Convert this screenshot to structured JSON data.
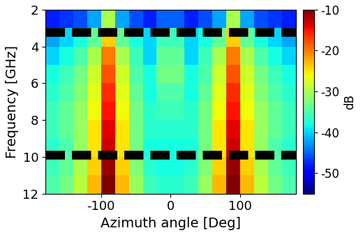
{
  "chart_data": {
    "type": "heatmap",
    "xlabel": "Azimuth angle [Deg]",
    "ylabel": "Frequency [GHz]",
    "x_edges": [
      -180,
      -160,
      -140,
      -120,
      -100,
      -80,
      -60,
      -40,
      -20,
      0,
      20,
      40,
      60,
      80,
      100,
      120,
      140,
      160,
      180
    ],
    "y_edges": [
      2,
      3,
      4,
      5,
      6,
      7,
      8,
      9,
      10,
      11,
      12
    ],
    "cells": [
      [
        -48,
        -47,
        -46,
        -42,
        -30,
        -42,
        -46,
        -48,
        -45,
        -45,
        -48,
        -46,
        -42,
        -30,
        -42,
        -46,
        -47,
        -48
      ],
      [
        -42,
        -40,
        -38,
        -34,
        -24,
        -34,
        -38,
        -40,
        -36,
        -36,
        -40,
        -38,
        -34,
        -24,
        -34,
        -38,
        -40,
        -42
      ],
      [
        -40,
        -38,
        -35,
        -30,
        -20,
        -30,
        -36,
        -40,
        -34,
        -34,
        -40,
        -36,
        -30,
        -20,
        -30,
        -35,
        -38,
        -40
      ],
      [
        -38,
        -36,
        -33,
        -28,
        -18,
        -28,
        -35,
        -38,
        -33,
        -33,
        -38,
        -35,
        -28,
        -18,
        -28,
        -33,
        -36,
        -38
      ],
      [
        -37,
        -35,
        -32,
        -27,
        -16,
        -27,
        -34,
        -38,
        -35,
        -35,
        -38,
        -34,
        -27,
        -16,
        -27,
        -32,
        -35,
        -37
      ],
      [
        -36,
        -34,
        -31,
        -26,
        -15,
        -26,
        -33,
        -37,
        -36,
        -36,
        -37,
        -33,
        -26,
        -15,
        -26,
        -31,
        -34,
        -36
      ],
      [
        -36,
        -34,
        -31,
        -25,
        -14,
        -25,
        -33,
        -37,
        -37,
        -37,
        -37,
        -33,
        -25,
        -14,
        -25,
        -31,
        -34,
        -36
      ],
      [
        -37,
        -35,
        -31,
        -25,
        -13,
        -25,
        -33,
        -38,
        -38,
        -38,
        -38,
        -33,
        -25,
        -13,
        -25,
        -31,
        -35,
        -37
      ],
      [
        -36,
        -34,
        -30,
        -24,
        -11,
        -24,
        -32,
        -37,
        -38,
        -38,
        -37,
        -32,
        -24,
        -11,
        -24,
        -30,
        -34,
        -36
      ],
      [
        -35,
        -33,
        -29,
        -23,
        -10,
        -23,
        -31,
        -36,
        -37,
        -37,
        -36,
        -31,
        -23,
        -10,
        -23,
        -29,
        -33,
        -35
      ]
    ],
    "color": "jet",
    "xlim": [
      -180,
      180
    ],
    "xticks": [
      -100,
      0,
      100
    ],
    "ylim": [
      12,
      2
    ],
    "yticks": [
      2,
      4,
      6,
      8,
      10,
      12
    ],
    "colorbar": {
      "label": "dB",
      "range": [
        -55,
        -10
      ],
      "ticks": [
        -50,
        -40,
        -30,
        -20,
        -10
      ]
    },
    "series": [
      {
        "type": "hline",
        "values": [
          3.2,
          9.9
        ],
        "color": "#000000",
        "line_style": "dashed"
      }
    ]
  }
}
